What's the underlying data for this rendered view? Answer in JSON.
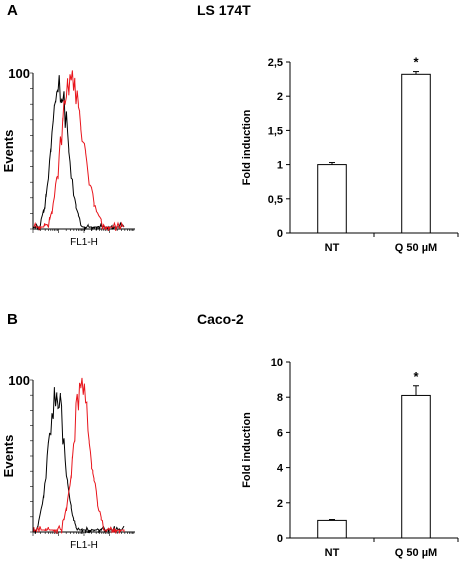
{
  "panels": [
    {
      "letter": "A",
      "title": "LS 174T"
    },
    {
      "letter": "B",
      "title": "Caco-2"
    }
  ],
  "chart_data": [
    {
      "panel": "A",
      "type": "histogram",
      "ylabel": "Events",
      "ytick_top": "100",
      "xlabel": "FL1-H",
      "series": [
        {
          "color": "#000000"
        },
        {
          "color": "#e8141b"
        }
      ]
    },
    {
      "panel": "A",
      "type": "bar",
      "categories": [
        "NT",
        "Q 50 µM"
      ],
      "values": [
        1.0,
        2.32
      ],
      "errors": [
        0.03,
        0.04
      ],
      "annotations": [
        "",
        "*"
      ],
      "ylabel": "Fold induction",
      "ylim": [
        0,
        2.5
      ],
      "yticks": [
        0,
        0.5,
        1,
        1.5,
        2,
        2.5
      ],
      "yticklabels": [
        "0",
        "0,5",
        "1",
        "1,5",
        "2",
        "2,5"
      ]
    },
    {
      "panel": "B",
      "type": "histogram",
      "ylabel": "Events",
      "ytick_top": "100",
      "xlabel": "FL1-H",
      "series": [
        {
          "color": "#000000"
        },
        {
          "color": "#e8141b"
        }
      ]
    },
    {
      "panel": "B",
      "type": "bar",
      "categories": [
        "NT",
        "Q 50 µM"
      ],
      "values": [
        1.0,
        8.1
      ],
      "errors": [
        0.05,
        0.55
      ],
      "annotations": [
        "",
        "*"
      ],
      "ylabel": "Fold induction",
      "ylim": [
        0,
        10
      ],
      "yticks": [
        0,
        2,
        4,
        6,
        8,
        10
      ],
      "yticklabels": [
        "0",
        "2",
        "4",
        "6",
        "8",
        "10"
      ]
    }
  ]
}
